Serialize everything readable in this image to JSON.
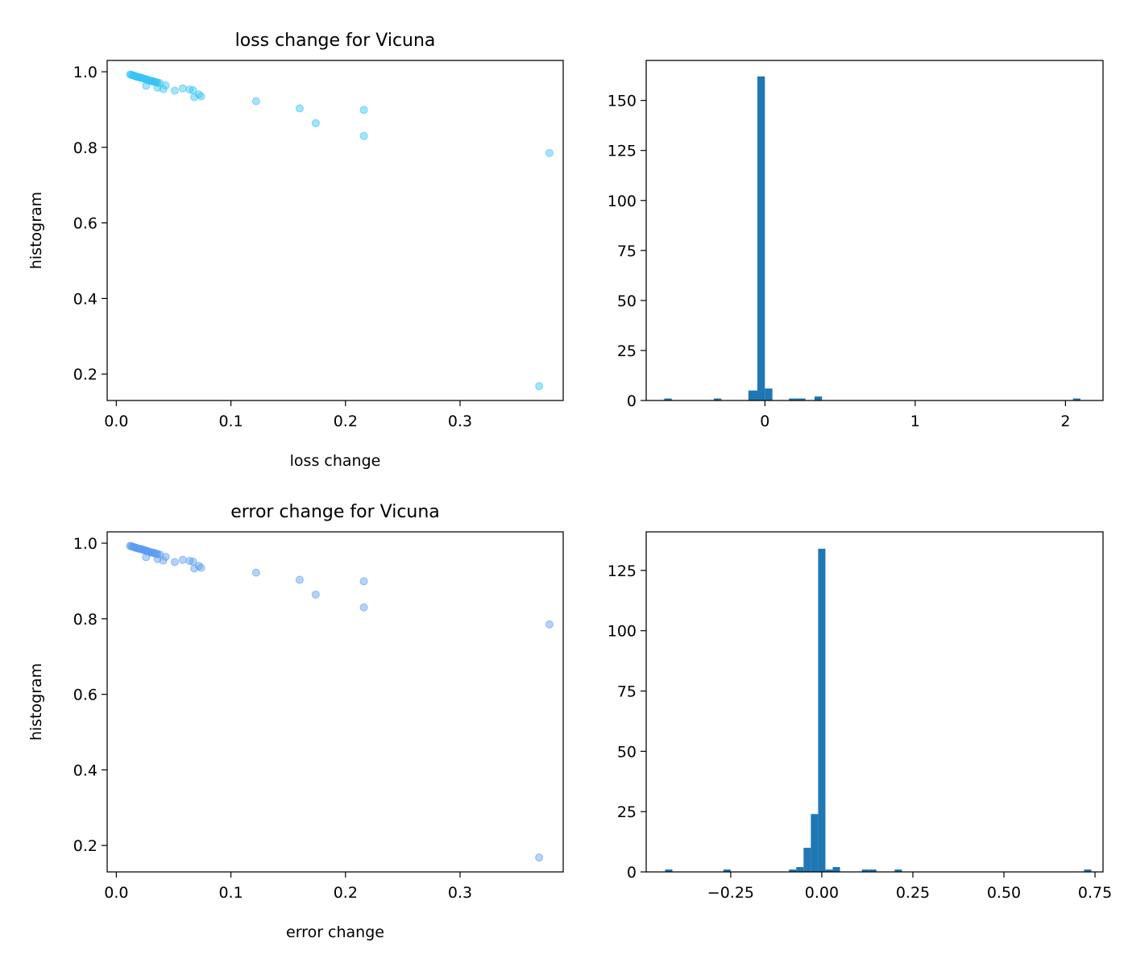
{
  "chart_data": [
    {
      "type": "scatter",
      "title": "loss change for Vicuna",
      "xlabel": "loss change",
      "ylabel": "histogram",
      "xlim": [
        -0.008,
        0.39
      ],
      "ylim": [
        0.13,
        1.03
      ],
      "xticks": [
        0.0,
        0.1,
        0.2,
        0.3
      ],
      "xtick_labels": [
        "0.0",
        "0.1",
        "0.2",
        "0.3"
      ],
      "yticks": [
        0.2,
        0.4,
        0.6,
        0.8,
        1.0
      ],
      "ytick_labels": [
        "0.2",
        "0.4",
        "0.6",
        "0.8",
        "1.0"
      ],
      "color": "#35c4f5",
      "points": [
        [
          0.012,
          0.993
        ],
        [
          0.013,
          0.992
        ],
        [
          0.014,
          0.991
        ],
        [
          0.015,
          0.99
        ],
        [
          0.016,
          0.989
        ],
        [
          0.017,
          0.988
        ],
        [
          0.018,
          0.987
        ],
        [
          0.019,
          0.986
        ],
        [
          0.02,
          0.985
        ],
        [
          0.021,
          0.985
        ],
        [
          0.022,
          0.984
        ],
        [
          0.023,
          0.983
        ],
        [
          0.024,
          0.982
        ],
        [
          0.025,
          0.981
        ],
        [
          0.026,
          0.98
        ],
        [
          0.027,
          0.979
        ],
        [
          0.028,
          0.978
        ],
        [
          0.029,
          0.977
        ],
        [
          0.03,
          0.976
        ],
        [
          0.031,
          0.975
        ],
        [
          0.032,
          0.975
        ],
        [
          0.033,
          0.974
        ],
        [
          0.034,
          0.973
        ],
        [
          0.035,
          0.972
        ],
        [
          0.036,
          0.971
        ],
        [
          0.038,
          0.97
        ],
        [
          0.026,
          0.963
        ],
        [
          0.036,
          0.958
        ],
        [
          0.041,
          0.954
        ],
        [
          0.043,
          0.964
        ],
        [
          0.051,
          0.95
        ],
        [
          0.058,
          0.956
        ],
        [
          0.064,
          0.953
        ],
        [
          0.067,
          0.951
        ],
        [
          0.068,
          0.933
        ],
        [
          0.072,
          0.94
        ],
        [
          0.074,
          0.935
        ],
        [
          0.122,
          0.922
        ],
        [
          0.16,
          0.903
        ],
        [
          0.174,
          0.864
        ],
        [
          0.216,
          0.899
        ],
        [
          0.216,
          0.83
        ],
        [
          0.378,
          0.785
        ],
        [
          0.369,
          0.168
        ]
      ]
    },
    {
      "type": "bar",
      "subtype": "histogram",
      "xlim": [
        -0.79,
        2.25
      ],
      "ylim": [
        0,
        170
      ],
      "xticks": [
        0,
        1,
        2
      ],
      "xtick_labels": [
        "0",
        "1",
        "2"
      ],
      "yticks": [
        0,
        25,
        50,
        75,
        100,
        125,
        150
      ],
      "ytick_labels": [
        "0",
        "25",
        "50",
        "75",
        "100",
        "125",
        "150"
      ],
      "color": "#1f77b4",
      "bins": [
        {
          "x0": -0.67,
          "x1": -0.62,
          "count": 1
        },
        {
          "x0": -0.34,
          "x1": -0.29,
          "count": 1
        },
        {
          "x0": -0.11,
          "x1": -0.05,
          "count": 5
        },
        {
          "x0": -0.05,
          "x1": 0.0,
          "count": 162
        },
        {
          "x0": 0.0,
          "x1": 0.05,
          "count": 6
        },
        {
          "x0": 0.16,
          "x1": 0.22,
          "count": 1
        },
        {
          "x0": 0.22,
          "x1": 0.27,
          "count": 1
        },
        {
          "x0": 0.33,
          "x1": 0.38,
          "count": 2
        },
        {
          "x0": 2.05,
          "x1": 2.1,
          "count": 1
        }
      ]
    },
    {
      "type": "scatter",
      "title": "error change for Vicuna",
      "xlabel": "error change",
      "ylabel": "histogram",
      "xlim": [
        -0.008,
        0.39
      ],
      "ylim": [
        0.13,
        1.03
      ],
      "xticks": [
        0.0,
        0.1,
        0.2,
        0.3
      ],
      "xtick_labels": [
        "0.0",
        "0.1",
        "0.2",
        "0.3"
      ],
      "yticks": [
        0.2,
        0.4,
        0.6,
        0.8,
        1.0
      ],
      "ytick_labels": [
        "0.2",
        "0.4",
        "0.6",
        "0.8",
        "1.0"
      ],
      "color": "#5b9cf2",
      "points": [
        [
          0.012,
          0.993
        ],
        [
          0.013,
          0.992
        ],
        [
          0.014,
          0.991
        ],
        [
          0.015,
          0.99
        ],
        [
          0.016,
          0.989
        ],
        [
          0.017,
          0.988
        ],
        [
          0.018,
          0.987
        ],
        [
          0.019,
          0.986
        ],
        [
          0.02,
          0.985
        ],
        [
          0.021,
          0.985
        ],
        [
          0.022,
          0.984
        ],
        [
          0.023,
          0.983
        ],
        [
          0.024,
          0.982
        ],
        [
          0.025,
          0.981
        ],
        [
          0.026,
          0.98
        ],
        [
          0.027,
          0.979
        ],
        [
          0.028,
          0.978
        ],
        [
          0.029,
          0.977
        ],
        [
          0.03,
          0.976
        ],
        [
          0.031,
          0.975
        ],
        [
          0.032,
          0.975
        ],
        [
          0.033,
          0.974
        ],
        [
          0.034,
          0.973
        ],
        [
          0.035,
          0.972
        ],
        [
          0.036,
          0.971
        ],
        [
          0.038,
          0.97
        ],
        [
          0.026,
          0.963
        ],
        [
          0.036,
          0.958
        ],
        [
          0.041,
          0.954
        ],
        [
          0.043,
          0.964
        ],
        [
          0.051,
          0.95
        ],
        [
          0.058,
          0.956
        ],
        [
          0.064,
          0.953
        ],
        [
          0.067,
          0.951
        ],
        [
          0.068,
          0.933
        ],
        [
          0.072,
          0.94
        ],
        [
          0.074,
          0.935
        ],
        [
          0.122,
          0.922
        ],
        [
          0.16,
          0.903
        ],
        [
          0.174,
          0.864
        ],
        [
          0.216,
          0.899
        ],
        [
          0.216,
          0.83
        ],
        [
          0.378,
          0.785
        ],
        [
          0.369,
          0.168
        ]
      ]
    },
    {
      "type": "bar",
      "subtype": "histogram",
      "xlim": [
        -0.482,
        0.772
      ],
      "ylim": [
        0,
        141
      ],
      "xticks": [
        -0.25,
        0.0,
        0.25,
        0.5,
        0.75
      ],
      "xtick_labels": [
        "−0.25",
        "0.00",
        "0.25",
        "0.50",
        "0.75"
      ],
      "yticks": [
        0,
        25,
        50,
        75,
        100,
        125
      ],
      "ytick_labels": [
        "0",
        "25",
        "50",
        "75",
        "100",
        "125"
      ],
      "color": "#1f77b4",
      "bins": [
        {
          "x0": -0.43,
          "x1": -0.41,
          "count": 1
        },
        {
          "x0": -0.27,
          "x1": -0.25,
          "count": 1
        },
        {
          "x0": -0.09,
          "x1": -0.07,
          "count": 1
        },
        {
          "x0": -0.07,
          "x1": -0.05,
          "count": 2
        },
        {
          "x0": -0.05,
          "x1": -0.03,
          "count": 10
        },
        {
          "x0": -0.03,
          "x1": -0.01,
          "count": 24
        },
        {
          "x0": -0.01,
          "x1": 0.01,
          "count": 134
        },
        {
          "x0": 0.01,
          "x1": 0.03,
          "count": 1
        },
        {
          "x0": 0.03,
          "x1": 0.05,
          "count": 2
        },
        {
          "x0": 0.11,
          "x1": 0.13,
          "count": 1
        },
        {
          "x0": 0.13,
          "x1": 0.15,
          "count": 1
        },
        {
          "x0": 0.2,
          "x1": 0.22,
          "count": 1
        },
        {
          "x0": 0.72,
          "x1": 0.74,
          "count": 1
        }
      ]
    }
  ]
}
